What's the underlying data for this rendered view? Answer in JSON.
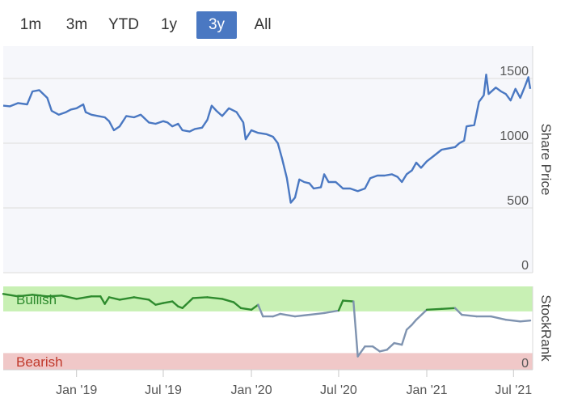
{
  "range_selector": {
    "buttons": [
      {
        "label": "1m",
        "active": false
      },
      {
        "label": "3m",
        "active": false
      },
      {
        "label": "YTD",
        "active": false
      },
      {
        "label": "1y",
        "active": false
      },
      {
        "label": "3y",
        "active": true
      },
      {
        "label": "All",
        "active": false
      }
    ]
  },
  "colors": {
    "price_line": "#4a78c2",
    "active_button": "#4a78c2",
    "bullish_fill": "#c8f0b4",
    "bearish_fill": "#f0c8c8",
    "bullish_text": "#2e8b2e",
    "bearish_text": "#c0392b",
    "bullish_line": "#2e8b2e",
    "rank_line": "#7f93b0",
    "grid": "#e6e6e6",
    "plot_bg": "#f6f7fb"
  },
  "chart_data": [
    {
      "type": "line",
      "ylabel": "Share Price",
      "ylim": [
        0,
        1750
      ],
      "yticks": [
        0,
        500,
        1000,
        1500
      ],
      "xlim": [
        "2018-08-01",
        "2021-08-10"
      ],
      "series": [
        {
          "points": [
            [
              "2018-08-01",
              1290
            ],
            [
              "2018-08-15",
              1285
            ],
            [
              "2018-09-01",
              1310
            ],
            [
              "2018-09-20",
              1300
            ],
            [
              "2018-10-01",
              1400
            ],
            [
              "2018-10-15",
              1410
            ],
            [
              "2018-11-01",
              1350
            ],
            [
              "2018-11-10",
              1250
            ],
            [
              "2018-11-25",
              1220
            ],
            [
              "2018-12-10",
              1240
            ],
            [
              "2018-12-20",
              1260
            ],
            [
              "2019-01-01",
              1270
            ],
            [
              "2019-01-15",
              1300
            ],
            [
              "2019-01-20",
              1240
            ],
            [
              "2019-02-01",
              1220
            ],
            [
              "2019-02-15",
              1210
            ],
            [
              "2019-03-01",
              1200
            ],
            [
              "2019-03-10",
              1170
            ],
            [
              "2019-03-20",
              1100
            ],
            [
              "2019-04-01",
              1130
            ],
            [
              "2019-04-15",
              1210
            ],
            [
              "2019-05-01",
              1200
            ],
            [
              "2019-05-15",
              1220
            ],
            [
              "2019-06-01",
              1160
            ],
            [
              "2019-06-15",
              1150
            ],
            [
              "2019-07-01",
              1170
            ],
            [
              "2019-07-10",
              1160
            ],
            [
              "2019-07-20",
              1130
            ],
            [
              "2019-08-01",
              1150
            ],
            [
              "2019-08-10",
              1100
            ],
            [
              "2019-08-25",
              1090
            ],
            [
              "2019-09-05",
              1110
            ],
            [
              "2019-09-20",
              1120
            ],
            [
              "2019-10-01",
              1180
            ],
            [
              "2019-10-10",
              1290
            ],
            [
              "2019-10-20",
              1250
            ],
            [
              "2019-11-01",
              1210
            ],
            [
              "2019-11-15",
              1270
            ],
            [
              "2019-12-01",
              1240
            ],
            [
              "2019-12-15",
              1160
            ],
            [
              "2019-12-20",
              1030
            ],
            [
              "2020-01-01",
              1100
            ],
            [
              "2020-01-15",
              1080
            ],
            [
              "2020-02-01",
              1070
            ],
            [
              "2020-02-15",
              1050
            ],
            [
              "2020-02-25",
              1000
            ],
            [
              "2020-03-05",
              880
            ],
            [
              "2020-03-15",
              730
            ],
            [
              "2020-03-23",
              540
            ],
            [
              "2020-04-01",
              580
            ],
            [
              "2020-04-10",
              720
            ],
            [
              "2020-04-20",
              700
            ],
            [
              "2020-05-01",
              690
            ],
            [
              "2020-05-10",
              650
            ],
            [
              "2020-05-25",
              660
            ],
            [
              "2020-06-01",
              760
            ],
            [
              "2020-06-10",
              700
            ],
            [
              "2020-06-25",
              700
            ],
            [
              "2020-07-10",
              650
            ],
            [
              "2020-07-25",
              650
            ],
            [
              "2020-08-10",
              630
            ],
            [
              "2020-08-25",
              650
            ],
            [
              "2020-09-05",
              730
            ],
            [
              "2020-09-20",
              750
            ],
            [
              "2020-10-05",
              750
            ],
            [
              "2020-10-20",
              760
            ],
            [
              "2020-11-01",
              740
            ],
            [
              "2020-11-10",
              700
            ],
            [
              "2020-11-20",
              760
            ],
            [
              "2020-12-01",
              790
            ],
            [
              "2020-12-10",
              850
            ],
            [
              "2020-12-20",
              810
            ],
            [
              "2021-01-01",
              860
            ],
            [
              "2021-01-15",
              900
            ],
            [
              "2021-02-01",
              950
            ],
            [
              "2021-02-15",
              960
            ],
            [
              "2021-03-01",
              970
            ],
            [
              "2021-03-10",
              1000
            ],
            [
              "2021-03-20",
              1020
            ],
            [
              "2021-03-25",
              1130
            ],
            [
              "2021-04-10",
              1140
            ],
            [
              "2021-04-20",
              1320
            ],
            [
              "2021-04-30",
              1370
            ],
            [
              "2021-05-05",
              1530
            ],
            [
              "2021-05-10",
              1380
            ],
            [
              "2021-05-25",
              1430
            ],
            [
              "2021-06-05",
              1400
            ],
            [
              "2021-06-15",
              1380
            ],
            [
              "2021-06-25",
              1330
            ],
            [
              "2021-07-05",
              1420
            ],
            [
              "2021-07-15",
              1350
            ],
            [
              "2021-07-25",
              1440
            ],
            [
              "2021-08-01",
              1510
            ],
            [
              "2021-08-05",
              1420
            ]
          ]
        }
      ]
    },
    {
      "type": "line",
      "ylabel": "StockRank",
      "ylim": [
        0,
        100
      ],
      "yticks": [
        0
      ],
      "zones": [
        {
          "label": "Bullish",
          "from": 70,
          "to": 100
        },
        {
          "label": "Bearish",
          "from": 0,
          "to": 20
        }
      ],
      "series": [
        {
          "points": [
            [
              "2018-08-01",
              91
            ],
            [
              "2018-09-01",
              88
            ],
            [
              "2018-10-01",
              90
            ],
            [
              "2018-11-01",
              88
            ],
            [
              "2018-12-01",
              89
            ],
            [
              "2019-01-01",
              85
            ],
            [
              "2019-02-01",
              88
            ],
            [
              "2019-02-20",
              88
            ],
            [
              "2019-03-01",
              79
            ],
            [
              "2019-03-10",
              87
            ],
            [
              "2019-04-01",
              84
            ],
            [
              "2019-05-01",
              87
            ],
            [
              "2019-06-01",
              84
            ],
            [
              "2019-06-15",
              78
            ],
            [
              "2019-07-01",
              80
            ],
            [
              "2019-07-20",
              82
            ],
            [
              "2019-08-01",
              76
            ],
            [
              "2019-08-10",
              74
            ],
            [
              "2019-09-01",
              86
            ],
            [
              "2019-10-01",
              87
            ],
            [
              "2019-11-01",
              85
            ],
            [
              "2019-11-25",
              81
            ],
            [
              "2019-12-10",
              74
            ],
            [
              "2020-01-01",
              72
            ],
            [
              "2020-01-15",
              78
            ],
            [
              "2020-01-25",
              64
            ],
            [
              "2020-02-15",
              64
            ],
            [
              "2020-03-01",
              67
            ],
            [
              "2020-04-01",
              64
            ],
            [
              "2020-05-01",
              66
            ],
            [
              "2020-06-01",
              68
            ],
            [
              "2020-07-01",
              71
            ],
            [
              "2020-07-10",
              83
            ],
            [
              "2020-08-01",
              82
            ],
            [
              "2020-08-10",
              16
            ],
            [
              "2020-08-25",
              28
            ],
            [
              "2020-09-10",
              28
            ],
            [
              "2020-09-25",
              22
            ],
            [
              "2020-10-10",
              24
            ],
            [
              "2020-10-25",
              32
            ],
            [
              "2020-11-10",
              30
            ],
            [
              "2020-11-20",
              48
            ],
            [
              "2020-12-01",
              54
            ],
            [
              "2020-12-10",
              60
            ],
            [
              "2021-01-01",
              72
            ],
            [
              "2021-02-01",
              73
            ],
            [
              "2021-03-01",
              74
            ],
            [
              "2021-03-15",
              66
            ],
            [
              "2021-04-15",
              64
            ],
            [
              "2021-05-15",
              64
            ],
            [
              "2021-06-15",
              60
            ],
            [
              "2021-07-15",
              58
            ],
            [
              "2021-08-05",
              59
            ]
          ]
        }
      ]
    }
  ],
  "x_axis": {
    "ticks": [
      {
        "label": "Jan '19",
        "date": "2019-01-01"
      },
      {
        "label": "Jul '19",
        "date": "2019-07-01"
      },
      {
        "label": "Jan '20",
        "date": "2020-01-01"
      },
      {
        "label": "Jul '20",
        "date": "2020-07-01"
      },
      {
        "label": "Jan '21",
        "date": "2021-01-01"
      },
      {
        "label": "Jul '21",
        "date": "2021-07-01"
      }
    ]
  }
}
